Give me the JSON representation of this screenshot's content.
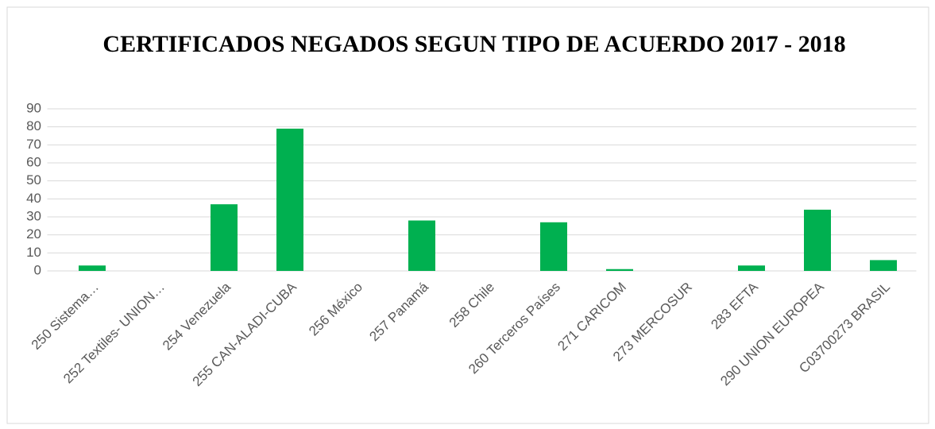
{
  "chart_data": {
    "type": "bar",
    "title": "CERTIFICADOS NEGADOS SEGUN TIPO DE ACUERDO 2017 - 2018",
    "categories": [
      "250 Sistema…",
      "252 Textiles- UNION…",
      "254 Venezuela",
      "255 CAN-ALADI-CUBA",
      "256 México",
      "257 Panamá",
      "258 Chile",
      "260 Terceros Países",
      "271 CARICOM",
      "273 MERCOSUR",
      "283 EFTA",
      "290 UNION EUROPEA",
      "C03700273 BRASIL"
    ],
    "values": [
      3,
      0,
      37,
      79,
      0,
      28,
      0,
      27,
      1,
      0,
      3,
      34,
      6
    ],
    "color": "#00b050",
    "ylim": [
      0,
      90
    ],
    "yticks": [
      0,
      10,
      20,
      30,
      40,
      50,
      60,
      70,
      80,
      90
    ],
    "grid": true
  }
}
